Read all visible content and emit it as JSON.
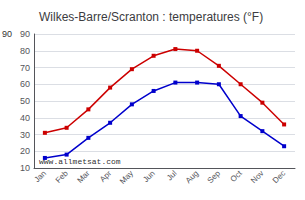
{
  "chart_data": {
    "type": "line",
    "title": "Wilkes-Barre/Scranton : temperatures (°F)",
    "categories": [
      "Jan",
      "Feb",
      "Mar",
      "Apr",
      "May",
      "Jun",
      "Jul",
      "Aug",
      "Sep",
      "Oct",
      "Nov",
      "Dec"
    ],
    "series": [
      {
        "color": "#cc0000",
        "marker": "square",
        "values": [
          31,
          34,
          45,
          58,
          69,
          77,
          81,
          80,
          71,
          60,
          49,
          36
        ]
      },
      {
        "color": "#0000cc",
        "marker": "square",
        "values": [
          16,
          18,
          28,
          37,
          48,
          56,
          61,
          61,
          60,
          41,
          32,
          23
        ]
      }
    ],
    "ylim": [
      10,
      90
    ],
    "yticks": [
      10,
      20,
      30,
      40,
      50,
      60,
      70,
      80,
      90
    ],
    "grid": true,
    "annotations": [
      {
        "text": "90"
      },
      {
        "text": "www.allmetsat.com"
      }
    ]
  }
}
